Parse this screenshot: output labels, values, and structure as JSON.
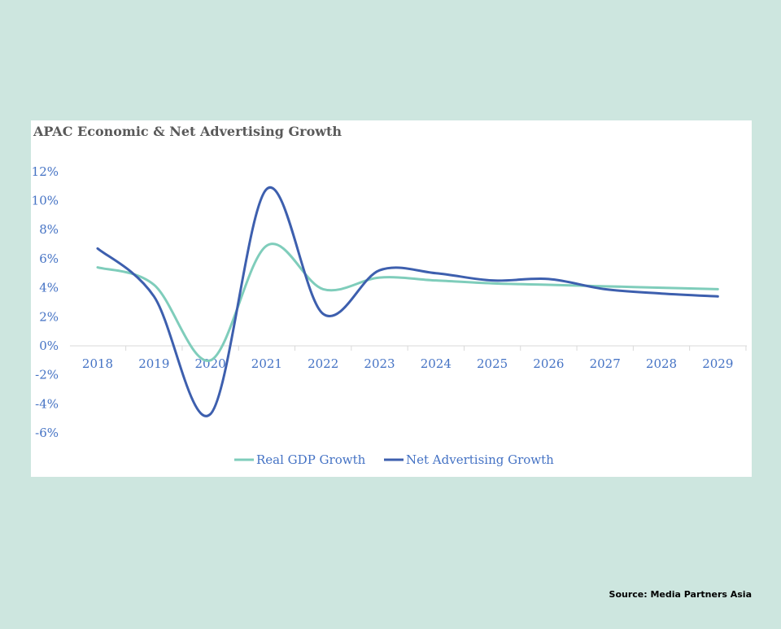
{
  "source_note": "Source: Media Partners Asia",
  "colors": {
    "background": "#cde6df",
    "panel": "#ffffff",
    "title": "#595959",
    "axis_text": "#4472c4",
    "axis_line": "#d9d9d9"
  },
  "chart_data": {
    "type": "line",
    "title": "APAC Economic & Net Advertising Growth",
    "x": [
      "2018",
      "2019",
      "2020",
      "2021",
      "2022",
      "2023",
      "2024",
      "2025",
      "2026",
      "2027",
      "2028",
      "2029"
    ],
    "y_ticks": [
      "12%",
      "10%",
      "8%",
      "6%",
      "4%",
      "2%",
      "0%",
      "-2%",
      "-4%",
      "-6%"
    ],
    "ylim": [
      -6,
      12
    ],
    "grid": false,
    "legend_position": "bottom",
    "series": [
      {
        "name": "Real GDP Growth",
        "color": "#7fcdbb",
        "values": [
          5.4,
          4.2,
          -1.0,
          6.9,
          3.9,
          4.7,
          4.5,
          4.3,
          4.2,
          4.1,
          4.0,
          3.9
        ]
      },
      {
        "name": "Net Advertising Growth",
        "color": "#3d5fae",
        "values": [
          6.7,
          3.4,
          -4.7,
          10.8,
          2.2,
          5.2,
          5.0,
          4.5,
          4.6,
          3.9,
          3.6,
          3.4
        ]
      }
    ]
  }
}
